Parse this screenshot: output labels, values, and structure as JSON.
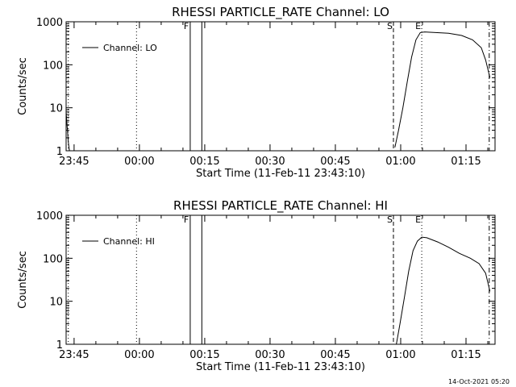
{
  "footer": "14-Oct-2021 05:20",
  "chart_data": [
    {
      "type": "line",
      "title": "RHESSI PARTICLE_RATE Channel: LO",
      "xlabel": "Start Time (11-Feb-11 23:43:10)",
      "ylabel": "Counts/sec",
      "yscale": "log",
      "ylim": [
        1,
        1000
      ],
      "y_ticks": [
        "1",
        "10",
        "100",
        "1000"
      ],
      "xlim": [
        "23:43:10",
        "01:21:40"
      ],
      "x_ticks": [
        "23:45",
        "00:00",
        "00:15",
        "00:30",
        "00:45",
        "01:00",
        "01:15"
      ],
      "grid": false,
      "legend_position": "upper-left",
      "series": [
        {
          "name": "Channel: LO",
          "points": [
            [
              "23:43:10",
              8
            ],
            [
              "23:43:25",
              3.5
            ],
            [
              "23:43:40",
              1.6
            ],
            [
              "23:43:55",
              1.0
            ],
            [
              "00:58:40",
              1.2
            ],
            [
              "00:59:30",
              3
            ],
            [
              "01:00:30",
              10
            ],
            [
              "01:01:30",
              40
            ],
            [
              "01:02:30",
              150
            ],
            [
              "01:03:30",
              380
            ],
            [
              "01:04:30",
              560
            ],
            [
              "01:05:30",
              580
            ],
            [
              "01:08:00",
              560
            ],
            [
              "01:11:00",
              540
            ],
            [
              "01:14:00",
              480
            ],
            [
              "01:16:30",
              380
            ],
            [
              "01:18:30",
              250
            ],
            [
              "01:19:30",
              130
            ],
            [
              "01:20:30",
              50
            ]
          ]
        }
      ],
      "markers": [
        {
          "label": "",
          "time": "23:43:40",
          "style": "dotted"
        },
        {
          "label": "",
          "time": "23:59:20",
          "style": "dotted"
        },
        {
          "label": "F",
          "time": "00:11:40",
          "style": "solid"
        },
        {
          "label": "",
          "time": "00:14:20",
          "style": "solid"
        },
        {
          "label": "S",
          "time": "00:58:20",
          "style": "dashed"
        },
        {
          "label": "E",
          "time": "01:04:50",
          "style": "dotted"
        },
        {
          "label": "",
          "time": "01:20:20",
          "style": "dash-dot"
        }
      ]
    },
    {
      "type": "line",
      "title": "RHESSI PARTICLE_RATE Channel: HI",
      "xlabel": "Start Time (11-Feb-11 23:43:10)",
      "ylabel": "Counts/sec",
      "yscale": "log",
      "ylim": [
        1,
        1000
      ],
      "y_ticks": [
        "1",
        "10",
        "100",
        "1000"
      ],
      "xlim": [
        "23:43:10",
        "01:21:40"
      ],
      "x_ticks": [
        "23:45",
        "00:00",
        "00:15",
        "00:30",
        "00:45",
        "01:00",
        "01:15"
      ],
      "grid": false,
      "legend_position": "upper-left",
      "series": [
        {
          "name": "Channel: HI",
          "points": [
            [
              "00:59:00",
              1.0
            ],
            [
              "00:59:50",
              3
            ],
            [
              "01:00:50",
              12
            ],
            [
              "01:01:50",
              50
            ],
            [
              "01:02:50",
              150
            ],
            [
              "01:03:50",
              250
            ],
            [
              "01:04:50",
              310
            ],
            [
              "01:06:00",
              300
            ],
            [
              "01:08:30",
              240
            ],
            [
              "01:11:00",
              180
            ],
            [
              "01:13:30",
              130
            ],
            [
              "01:16:00",
              100
            ],
            [
              "01:18:00",
              75
            ],
            [
              "01:19:30",
              45
            ],
            [
              "01:20:30",
              17
            ]
          ]
        }
      ],
      "markers": [
        {
          "label": "",
          "time": "23:43:40",
          "style": "dotted"
        },
        {
          "label": "",
          "time": "23:59:20",
          "style": "dotted"
        },
        {
          "label": "F",
          "time": "00:11:40",
          "style": "solid"
        },
        {
          "label": "",
          "time": "00:14:20",
          "style": "solid"
        },
        {
          "label": "S",
          "time": "00:58:20",
          "style": "dashed"
        },
        {
          "label": "E",
          "time": "01:04:50",
          "style": "dotted"
        },
        {
          "label": "",
          "time": "01:20:20",
          "style": "dash-dot"
        }
      ]
    }
  ]
}
